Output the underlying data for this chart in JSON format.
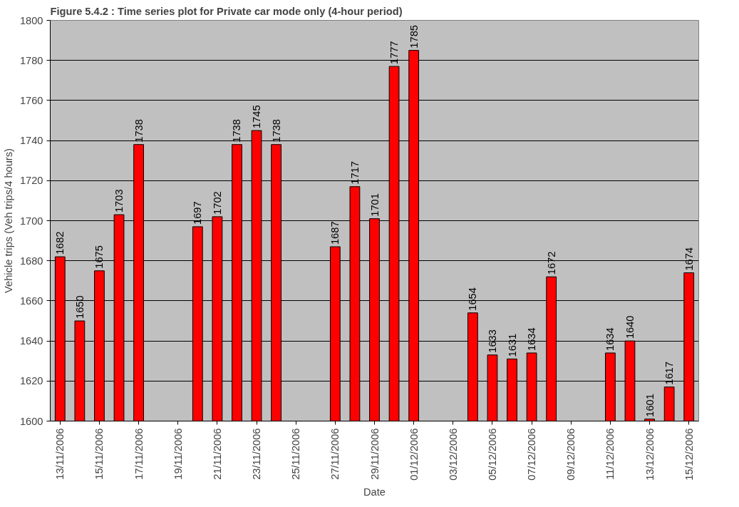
{
  "chart_data": {
    "type": "bar",
    "title": "Figure 5.4.2 : Time series plot for Private car mode only (4-hour period)",
    "xlabel": "Date",
    "ylabel": "Vehicle trips (Veh trips/4 hours)",
    "x": [
      "2006-11-13",
      "2006-11-14",
      "2006-11-15",
      "2006-11-16",
      "2006-11-17",
      "2006-11-20",
      "2006-11-21",
      "2006-11-22",
      "2006-11-23",
      "2006-11-24",
      "2006-11-27",
      "2006-11-28",
      "2006-11-29",
      "2006-11-30",
      "2006-12-01",
      "2006-12-04",
      "2006-12-05",
      "2006-12-06",
      "2006-12-07",
      "2006-12-08",
      "2006-12-11",
      "2006-12-12",
      "2006-12-13",
      "2006-12-14",
      "2006-12-15"
    ],
    "values": [
      1682,
      1650,
      1675,
      1703,
      1738,
      1697,
      1702,
      1738,
      1745,
      1738,
      1687,
      1717,
      1701,
      1777,
      1785,
      1654,
      1633,
      1631,
      1634,
      1672,
      1634,
      1640,
      1601,
      1617,
      1674
    ],
    "color": "#ff0000",
    "data_labels": true,
    "grid": "y",
    "ylim": [
      1600,
      1800
    ],
    "yticks": [
      1600,
      1620,
      1640,
      1660,
      1680,
      1700,
      1720,
      1740,
      1760,
      1780,
      1800
    ],
    "xlim": [
      "2006-11-12T12:00",
      "2006-12-15T12:00"
    ],
    "xticks": [
      {
        "value": "2006-11-13",
        "label": "13/11/2006"
      },
      {
        "value": "2006-11-15",
        "label": "15/11/2006"
      },
      {
        "value": "2006-11-17",
        "label": "17/11/2006"
      },
      {
        "value": "2006-11-19",
        "label": "19/11/2006"
      },
      {
        "value": "2006-11-21",
        "label": "21/11/2006"
      },
      {
        "value": "2006-11-23",
        "label": "23/11/2006"
      },
      {
        "value": "2006-11-25",
        "label": "25/11/2006"
      },
      {
        "value": "2006-11-27",
        "label": "27/11/2006"
      },
      {
        "value": "2006-11-29",
        "label": "29/11/2006"
      },
      {
        "value": "2006-12-01",
        "label": "01/12/2006"
      },
      {
        "value": "2006-12-03",
        "label": "03/12/2006"
      },
      {
        "value": "2006-12-05",
        "label": "05/12/2006"
      },
      {
        "value": "2006-12-07",
        "label": "07/12/2006"
      },
      {
        "value": "2006-12-09",
        "label": "09/12/2006"
      },
      {
        "value": "2006-12-11",
        "label": "11/12/2006"
      },
      {
        "value": "2006-12-13",
        "label": "13/12/2006"
      },
      {
        "value": "2006-12-15",
        "label": "15/12/2006"
      }
    ]
  }
}
